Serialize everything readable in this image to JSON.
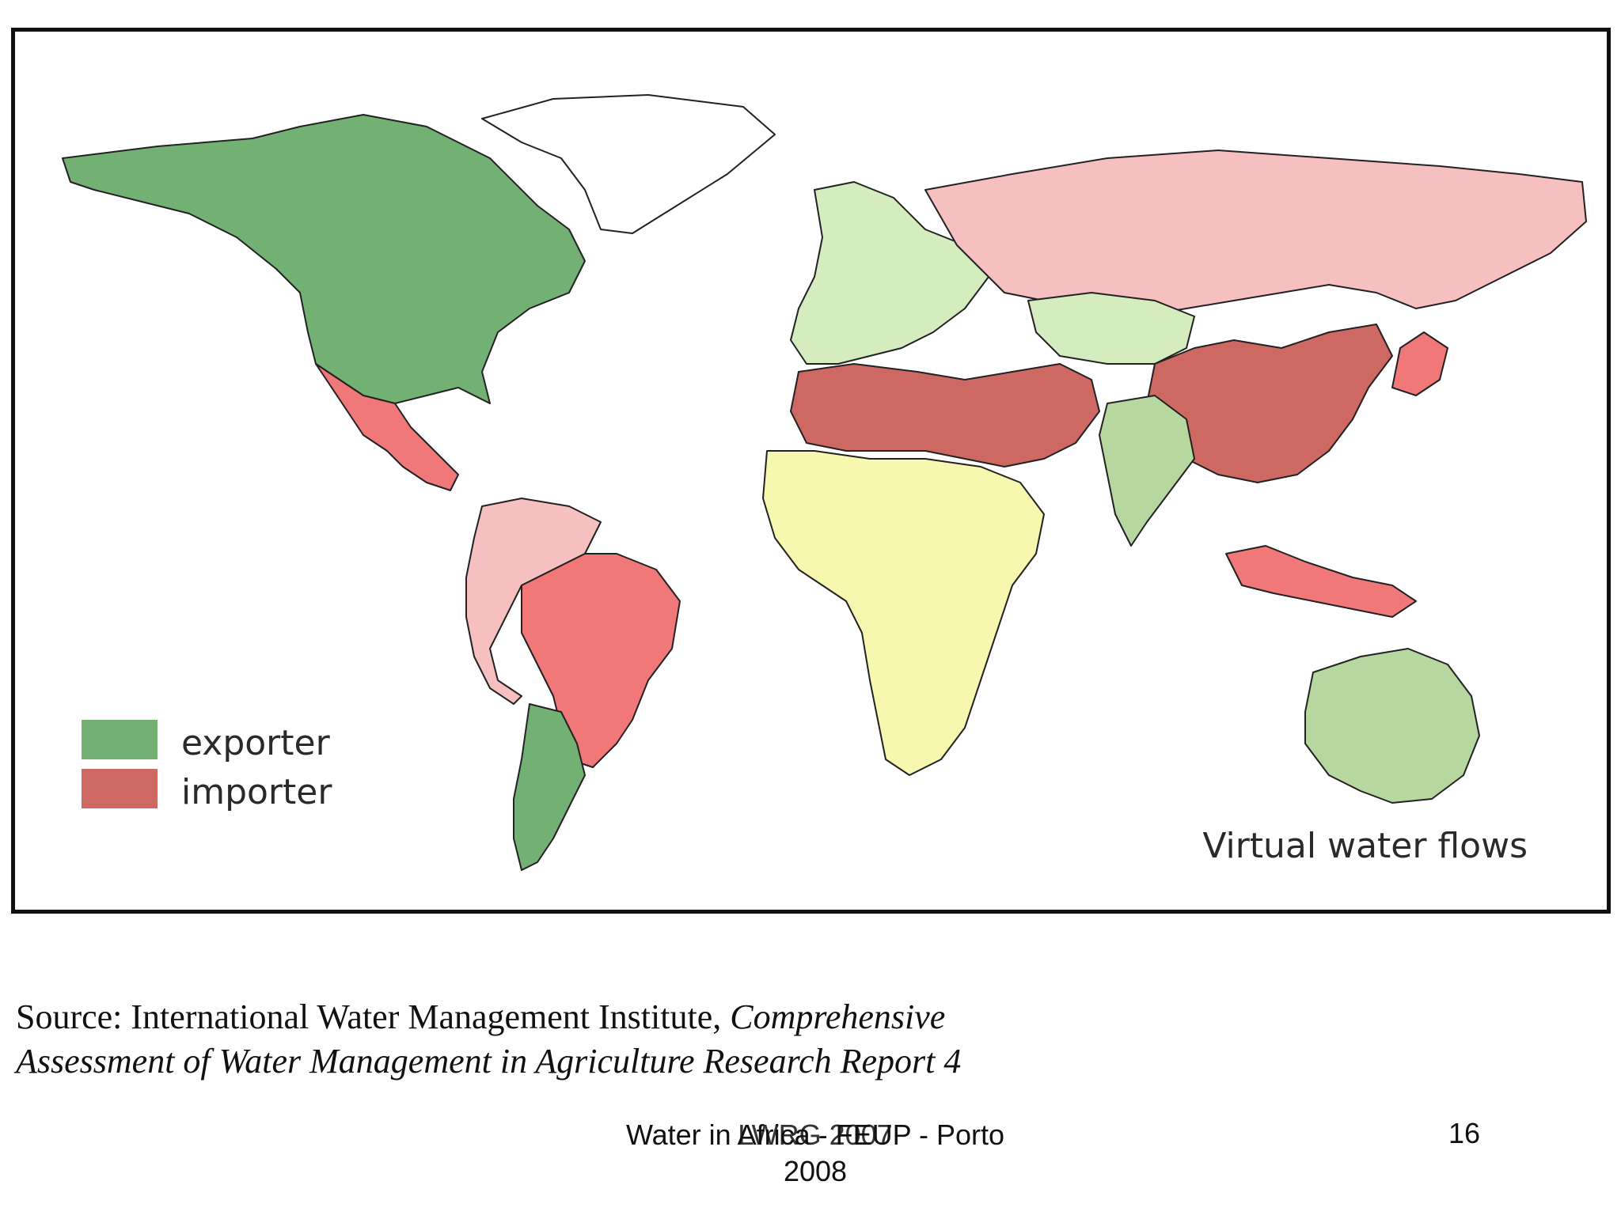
{
  "map": {
    "title": "Virtual water flows",
    "legend": [
      {
        "label": "exporter",
        "color": "#72b073"
      },
      {
        "label": "importer",
        "color": "#cd6862"
      }
    ],
    "category_colors": {
      "exporter_strong": "#72b073",
      "exporter_light": "#b7d7a0",
      "exporter_pale": "#d5ecbf",
      "neutral": "#f7f7b0",
      "importer_pale": "#f7c0c0",
      "importer_medium": "#f07878",
      "importer_strong": "#cd6862",
      "no_data": "#ffffff"
    },
    "regions": [
      {
        "name": "North America (Canada, USA)",
        "category": "exporter_strong"
      },
      {
        "name": "Mexico / Central America",
        "category": "importer_medium"
      },
      {
        "name": "Brazil",
        "category": "importer_medium"
      },
      {
        "name": "Argentina",
        "category": "exporter_strong"
      },
      {
        "name": "Russia",
        "category": "importer_pale"
      },
      {
        "name": "China",
        "category": "importer_strong"
      },
      {
        "name": "Japan / Korea",
        "category": "importer_medium"
      },
      {
        "name": "India",
        "category": "exporter_light"
      },
      {
        "name": "Australia",
        "category": "exporter_light"
      },
      {
        "name": "Europe",
        "category": "exporter_pale"
      },
      {
        "name": "North Africa / Middle East",
        "category": "importer_strong"
      },
      {
        "name": "Sub-Saharan Africa",
        "category": "neutral"
      },
      {
        "name": "Indonesia",
        "category": "importer_medium"
      },
      {
        "name": "Greenland",
        "category": "no_data"
      }
    ]
  },
  "source": {
    "prefix": "Source: International Water Management Institute, ",
    "italic_line1": "Comprehensive",
    "italic_line2": "Assessment of Water Management in Agriculture Research Report 4"
  },
  "footer": {
    "line1": "Water in Africa - FEUP - Porto",
    "line2": "2008",
    "overlay": "LWRG 2007",
    "page_number": "16"
  }
}
